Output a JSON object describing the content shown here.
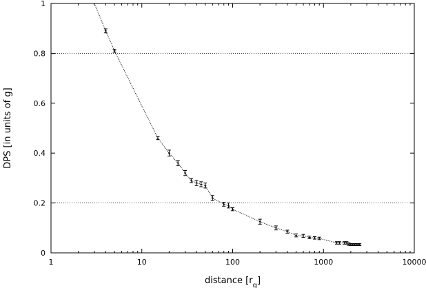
{
  "chart_data": {
    "type": "line",
    "xlabel": "distance [r",
    "xlabel_sub": "g",
    "xlabel_end": "]",
    "ylabel": "DPS [in units of g]",
    "x_scale": "log",
    "xlim": [
      1,
      10000
    ],
    "ylim": [
      0,
      1
    ],
    "x_ticks": [
      1,
      10,
      100,
      1000,
      10000
    ],
    "x_tick_labels": [
      "1",
      "10",
      "100",
      "1000",
      "10000"
    ],
    "y_ticks": [
      0,
      0.2,
      0.4,
      0.6,
      0.8,
      1
    ],
    "y_tick_labels": [
      "0",
      "0.2",
      "0.4",
      "0.6",
      "0.8",
      "1"
    ],
    "reference_lines_y": [
      0.2,
      0.8
    ],
    "grid": false,
    "line_style": "dotted",
    "x": [
      3,
      4,
      5,
      15,
      20,
      25,
      30,
      35,
      40,
      45,
      50,
      60,
      80,
      90,
      100,
      200,
      300,
      400,
      500,
      600,
      700,
      800,
      900,
      1400,
      1500,
      1700,
      1800,
      1900,
      2000,
      2100,
      2200,
      2300,
      2400,
      2500
    ],
    "y": [
      1.0,
      0.89,
      0.81,
      0.46,
      0.4,
      0.36,
      0.32,
      0.29,
      0.28,
      0.275,
      0.27,
      0.22,
      0.195,
      0.19,
      0.175,
      0.125,
      0.1,
      0.085,
      0.07,
      0.068,
      0.062,
      0.06,
      0.058,
      0.04,
      0.04,
      0.04,
      0.04,
      0.035,
      0.033,
      0.033,
      0.033,
      0.033,
      0.033,
      0.033
    ],
    "yerr": [
      0,
      0.008,
      0.006,
      0.006,
      0.012,
      0.01,
      0.01,
      0.008,
      0.01,
      0.01,
      0.01,
      0.01,
      0.008,
      0.01,
      0.006,
      0.01,
      0.008,
      0.006,
      0.006,
      0.006,
      0.005,
      0.005,
      0.005,
      0.005,
      0.005,
      0.005,
      0.005,
      0.005,
      0.004,
      0.004,
      0.004,
      0.004,
      0.004,
      0.004
    ]
  }
}
